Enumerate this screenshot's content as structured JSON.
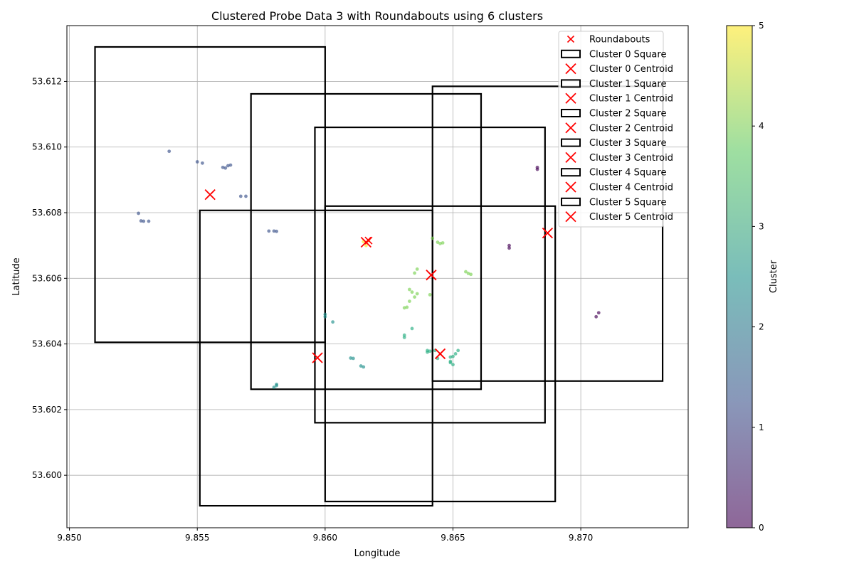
{
  "chart_data": {
    "type": "scatter",
    "title": "Clustered Probe Data 3 with Roundabouts using 6 clusters",
    "xlabel": "Longitude",
    "ylabel": "Latitude",
    "xlim": [
      9.8499,
      9.8742
    ],
    "ylim": [
      53.5984,
      53.6137
    ],
    "xticks": [
      9.85,
      9.855,
      9.86,
      9.865,
      9.87
    ],
    "xtick_labels": [
      "9.850",
      "9.855",
      "9.860",
      "9.865",
      "9.870"
    ],
    "yticks": [
      53.6,
      53.602,
      53.604,
      53.606,
      53.608,
      53.61,
      53.612
    ],
    "ytick_labels": [
      "53.600",
      "53.602",
      "53.604",
      "53.606",
      "53.608",
      "53.610",
      "53.612"
    ],
    "grid": true,
    "legend_position": "top-right",
    "colorbar": {
      "label": "Cluster",
      "min": 0,
      "max": 5,
      "ticks": [
        0,
        1,
        2,
        3,
        4,
        5
      ],
      "tick_labels": [
        "0",
        "1",
        "2",
        "3",
        "4",
        "5"
      ],
      "colors": [
        "#440154",
        "#3b528b",
        "#21918c",
        "#5ec962",
        "#fde725"
      ]
    },
    "cluster_colors": [
      "#440154",
      "#3b528b",
      "#21918c",
      "#27ad81",
      "#7ad151",
      "#fde725"
    ],
    "roundabouts": [
      [
        9.8555,
        53.60855
      ],
      [
        9.8617,
        53.60715
      ],
      [
        9.8597,
        53.60358
      ],
      [
        9.86415,
        53.6061
      ],
      [
        9.8645,
        53.6037
      ],
      [
        9.8687,
        53.60738
      ]
    ],
    "squares": [
      {
        "name": "Cluster 0 Square",
        "x0": 9.8642,
        "x1": 9.8732,
        "y0": 53.60287,
        "y1": 53.61185
      },
      {
        "name": "Cluster 1 Square",
        "x0": 9.851,
        "x1": 9.86,
        "y0": 53.60405,
        "y1": 53.61305
      },
      {
        "name": "Cluster 2 Square",
        "x0": 9.8551,
        "x1": 9.8642,
        "y0": 53.59907,
        "y1": 53.60807
      },
      {
        "name": "Cluster 3 Square",
        "x0": 9.86,
        "x1": 9.869,
        "y0": 53.5992,
        "y1": 53.6082
      },
      {
        "name": "Cluster 4 Square",
        "x0": 9.8596,
        "x1": 9.8686,
        "y0": 53.6016,
        "y1": 53.6106
      },
      {
        "name": "Cluster 5 Square",
        "x0": 9.8571,
        "x1": 9.8661,
        "y0": 53.60262,
        "y1": 53.61162
      }
    ],
    "centroids": [
      {
        "name": "Cluster 0 Centroid",
        "x": 9.8687,
        "y": 53.60738
      },
      {
        "name": "Cluster 1 Centroid",
        "x": 9.8555,
        "y": 53.60855
      },
      {
        "name": "Cluster 2 Centroid",
        "x": 9.8597,
        "y": 53.60358
      },
      {
        "name": "Cluster 3 Centroid",
        "x": 9.8645,
        "y": 53.6037
      },
      {
        "name": "Cluster 4 Centroid",
        "x": 9.86415,
        "y": 53.6061
      },
      {
        "name": "Cluster 5 Centroid",
        "x": 9.8616,
        "y": 53.6071
      }
    ],
    "points": [
      {
        "c": 1,
        "x": 9.8539,
        "y": 53.60987
      },
      {
        "c": 1,
        "x": 9.855,
        "y": 53.60955
      },
      {
        "c": 1,
        "x": 9.8552,
        "y": 53.60951
      },
      {
        "c": 1,
        "x": 9.856,
        "y": 53.60938
      },
      {
        "c": 1,
        "x": 9.8561,
        "y": 53.60936
      },
      {
        "c": 1,
        "x": 9.8562,
        "y": 53.60943
      },
      {
        "c": 1,
        "x": 9.8563,
        "y": 53.60945
      },
      {
        "c": 1,
        "x": 9.8567,
        "y": 53.6085
      },
      {
        "c": 1,
        "x": 9.8569,
        "y": 53.6085
      },
      {
        "c": 1,
        "x": 9.8527,
        "y": 53.60798
      },
      {
        "c": 1,
        "x": 9.8528,
        "y": 53.60775
      },
      {
        "c": 1,
        "x": 9.8529,
        "y": 53.60774
      },
      {
        "c": 1,
        "x": 9.8531,
        "y": 53.60774
      },
      {
        "c": 1,
        "x": 9.8578,
        "y": 53.60744
      },
      {
        "c": 1,
        "x": 9.858,
        "y": 53.60744
      },
      {
        "c": 1,
        "x": 9.8581,
        "y": 53.60743
      },
      {
        "c": 0,
        "x": 9.8683,
        "y": 53.60938
      },
      {
        "c": 0,
        "x": 9.8683,
        "y": 53.60932
      },
      {
        "c": 0,
        "x": 9.8672,
        "y": 53.607
      },
      {
        "c": 0,
        "x": 9.8672,
        "y": 53.60692
      },
      {
        "c": 0,
        "x": 9.8707,
        "y": 53.60495
      },
      {
        "c": 0,
        "x": 9.8706,
        "y": 53.60483
      },
      {
        "c": 2,
        "x": 9.86,
        "y": 53.6049
      },
      {
        "c": 2,
        "x": 9.86,
        "y": 53.60483
      },
      {
        "c": 2,
        "x": 9.8603,
        "y": 53.60467
      },
      {
        "c": 2,
        "x": 9.861,
        "y": 53.60357
      },
      {
        "c": 2,
        "x": 9.8611,
        "y": 53.60356
      },
      {
        "c": 2,
        "x": 9.8614,
        "y": 53.60333
      },
      {
        "c": 2,
        "x": 9.8615,
        "y": 53.6033
      },
      {
        "c": 2,
        "x": 9.858,
        "y": 53.60268
      },
      {
        "c": 2,
        "x": 9.8581,
        "y": 53.60277
      },
      {
        "c": 2,
        "x": 9.8581,
        "y": 53.60273
      },
      {
        "c": 3,
        "x": 9.8634,
        "y": 53.60447
      },
      {
        "c": 3,
        "x": 9.8631,
        "y": 53.60427
      },
      {
        "c": 3,
        "x": 9.8631,
        "y": 53.6042
      },
      {
        "c": 3,
        "x": 9.864,
        "y": 53.6038
      },
      {
        "c": 3,
        "x": 9.864,
        "y": 53.60375
      },
      {
        "c": 3,
        "x": 9.8641,
        "y": 53.60378
      },
      {
        "c": 3,
        "x": 9.8643,
        "y": 53.6038
      },
      {
        "c": 3,
        "x": 9.8644,
        "y": 53.60356
      },
      {
        "c": 3,
        "x": 9.8649,
        "y": 53.6036
      },
      {
        "c": 3,
        "x": 9.865,
        "y": 53.60362
      },
      {
        "c": 3,
        "x": 9.8651,
        "y": 53.6037
      },
      {
        "c": 3,
        "x": 9.8652,
        "y": 53.6038
      },
      {
        "c": 3,
        "x": 9.8649,
        "y": 53.60347
      },
      {
        "c": 3,
        "x": 9.8649,
        "y": 53.60343
      },
      {
        "c": 3,
        "x": 9.865,
        "y": 53.60337
      },
      {
        "c": 4,
        "x": 9.8642,
        "y": 53.60722
      },
      {
        "c": 4,
        "x": 9.8644,
        "y": 53.6071
      },
      {
        "c": 4,
        "x": 9.8645,
        "y": 53.60706
      },
      {
        "c": 4,
        "x": 9.8646,
        "y": 53.60708
      },
      {
        "c": 4,
        "x": 9.8636,
        "y": 53.60628
      },
      {
        "c": 4,
        "x": 9.8635,
        "y": 53.60616
      },
      {
        "c": 4,
        "x": 9.8655,
        "y": 53.6062
      },
      {
        "c": 4,
        "x": 9.8656,
        "y": 53.60615
      },
      {
        "c": 4,
        "x": 9.8657,
        "y": 53.60612
      },
      {
        "c": 4,
        "x": 9.8633,
        "y": 53.60566
      },
      {
        "c": 4,
        "x": 9.8634,
        "y": 53.60558
      },
      {
        "c": 4,
        "x": 9.8636,
        "y": 53.60553
      },
      {
        "c": 4,
        "x": 9.8635,
        "y": 53.60543
      },
      {
        "c": 4,
        "x": 9.8641,
        "y": 53.6055
      },
      {
        "c": 4,
        "x": 9.8633,
        "y": 53.6053
      },
      {
        "c": 4,
        "x": 9.8632,
        "y": 53.60512
      },
      {
        "c": 4,
        "x": 9.8631,
        "y": 53.6051
      },
      {
        "c": 5,
        "x": 9.8615,
        "y": 53.60712
      },
      {
        "c": 5,
        "x": 9.8616,
        "y": 53.607
      },
      {
        "c": 5,
        "x": 9.8617,
        "y": 53.60715
      }
    ],
    "legend": [
      {
        "kind": "x-small",
        "label": "Roundabouts"
      },
      {
        "kind": "square",
        "label": "Cluster 0 Square"
      },
      {
        "kind": "x",
        "label": "Cluster 0 Centroid"
      },
      {
        "kind": "square",
        "label": "Cluster 1 Square"
      },
      {
        "kind": "x",
        "label": "Cluster 1 Centroid"
      },
      {
        "kind": "square",
        "label": "Cluster 2 Square"
      },
      {
        "kind": "x",
        "label": "Cluster 2 Centroid"
      },
      {
        "kind": "square",
        "label": "Cluster 3 Square"
      },
      {
        "kind": "x",
        "label": "Cluster 3 Centroid"
      },
      {
        "kind": "square",
        "label": "Cluster 4 Square"
      },
      {
        "kind": "x",
        "label": "Cluster 4 Centroid"
      },
      {
        "kind": "square",
        "label": "Cluster 5 Square"
      },
      {
        "kind": "x",
        "label": "Cluster 5 Centroid"
      }
    ]
  }
}
